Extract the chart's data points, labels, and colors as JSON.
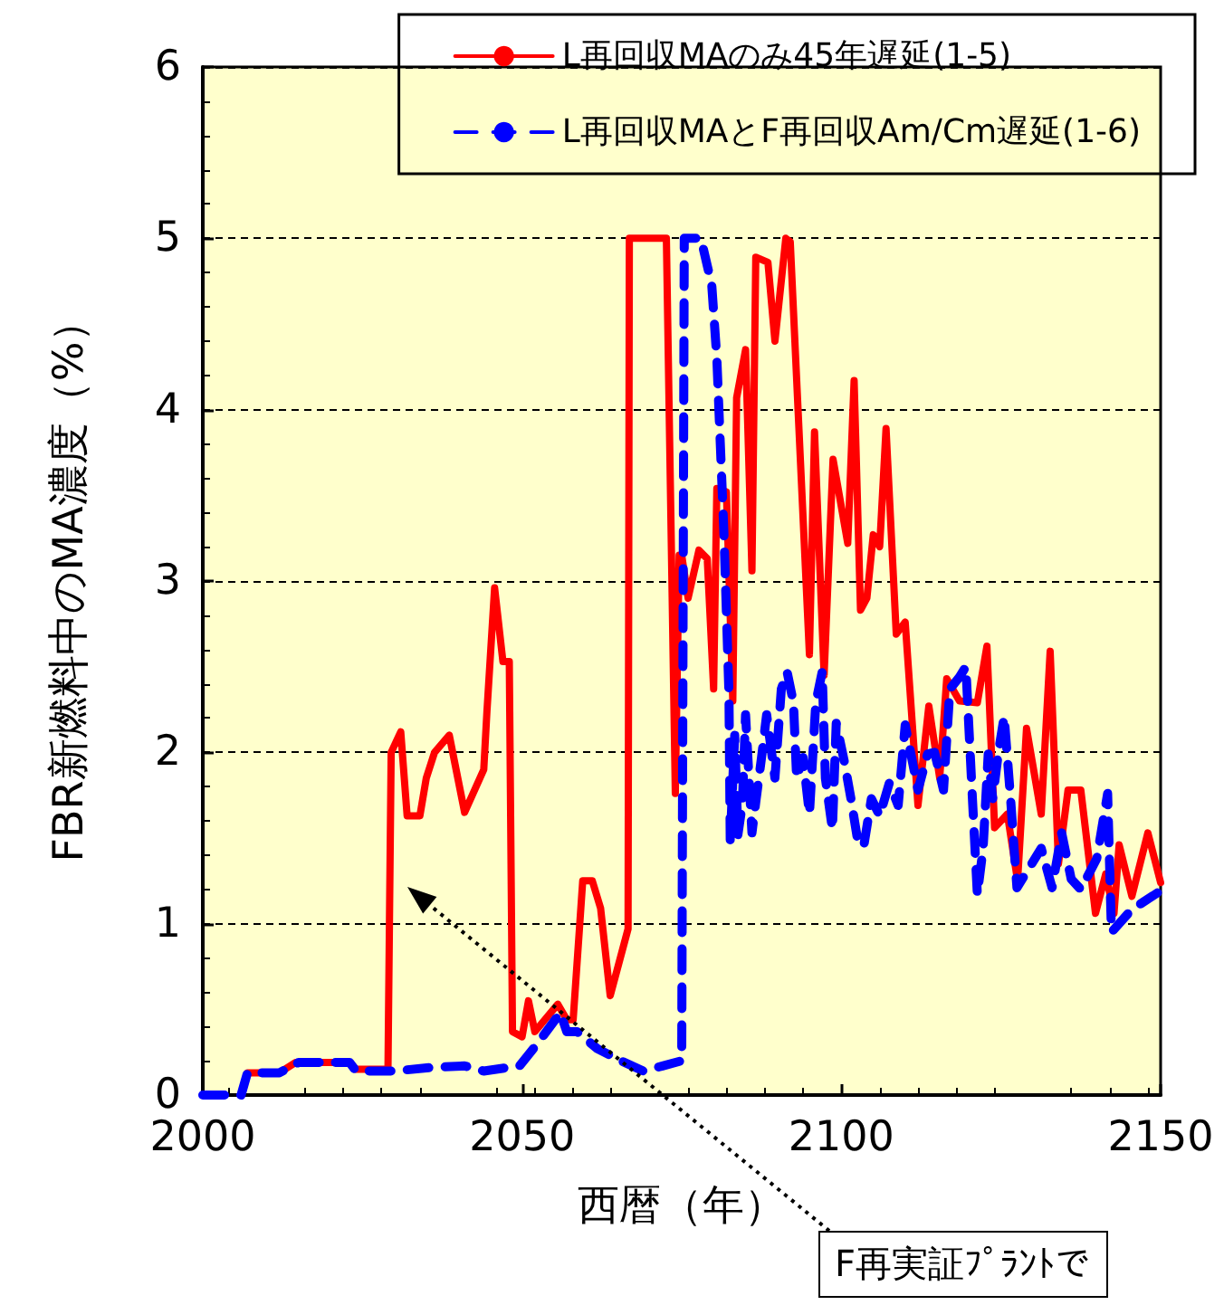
{
  "chart_data": {
    "type": "line",
    "xlabel": "西暦（年）",
    "ylabel": "FBR新燃料中のMA濃度（%）",
    "xlim": [
      2000,
      2150
    ],
    "xticks": [
      2000,
      2050,
      2100,
      2150
    ],
    "ylim": [
      0,
      6
    ],
    "yticks": [
      0,
      1,
      2,
      3,
      4,
      5,
      6
    ],
    "grid": "y",
    "legend": "top right",
    "marker": "none",
    "annotations": [
      "F再実証ﾌﾟﾗﾝﾄで"
    ],
    "series": [
      {
        "name": "L再回収MAのみ45年遅延(1-5)",
        "color": "#ff0000",
        "line_style": "solid",
        "x": [
          2006,
          2007,
          2012,
          2014.5,
          2023,
          2024,
          2029,
          2029.5,
          2031,
          2032,
          2034,
          2035,
          2036.3,
          2038.6,
          2041,
          2044,
          2044.5,
          2045.7,
          2047,
          2048,
          2048.5,
          2050,
          2051,
          2052,
          2055.6,
          2057,
          2058,
          2059.5,
          2061,
          2062.3,
          2063.8,
          2066.6,
          2066.8,
          2072.6,
          2074,
          2074.6,
          2075,
          2076,
          2077.7,
          2079,
          2080,
          2080.5,
          2082,
          2083,
          2083.6,
          2085,
          2086,
          2086.6,
          2088.5,
          2089.6,
          2091.3,
          2092,
          2095,
          2095.8,
          2097.3,
          2098.7,
          2101,
          2102,
          2103,
          2104,
          2105,
          2106,
          2107,
          2108.6,
          2110,
          2112,
          2113.7,
          2115.4,
          2116.5,
          2118.5,
          2121.3,
          2122.8,
          2124,
          2126,
          2127.6,
          2129,
          2131.3,
          2132.7,
          2134,
          2135.5,
          2137.5,
          2139.8,
          2141.4,
          2142.7,
          2143.5,
          2145.5,
          2148,
          2150
        ],
        "values": [
          0,
          0.13,
          0.13,
          0.19,
          0.19,
          0.15,
          0.15,
          2.0,
          2.12,
          1.63,
          1.63,
          1.85,
          2.0,
          2.1,
          1.65,
          1.9,
          2.24,
          2.96,
          2.53,
          2.53,
          0.37,
          0.34,
          0.55,
          0.37,
          0.53,
          0.44,
          0.44,
          1.25,
          1.25,
          1.09,
          0.58,
          0.97,
          5.0,
          5.0,
          1.76,
          3.15,
          3.15,
          2.9,
          3.18,
          3.13,
          2.37,
          3.54,
          3.52,
          2.3,
          4.07,
          4.35,
          3.06,
          4.89,
          4.86,
          4.4,
          5.0,
          4.98,
          2.57,
          3.87,
          2.45,
          3.71,
          3.22,
          4.17,
          2.83,
          2.9,
          3.27,
          3.2,
          3.89,
          2.69,
          2.76,
          1.69,
          2.27,
          1.85,
          2.43,
          2.3,
          2.29,
          2.62,
          1.56,
          1.64,
          1.25,
          2.14,
          1.64,
          2.59,
          1.35,
          1.78,
          1.78,
          1.06,
          1.29,
          1.06,
          1.46,
          1.16,
          1.53,
          1.24
        ]
      },
      {
        "name": "L再回収MAとF再回収Am/Cm遅延(1-6)",
        "color": "#0000ff",
        "line_style": "dashed",
        "x": [
          2000,
          2006,
          2007,
          2012,
          2015,
          2023,
          2024,
          2030,
          2035.5,
          2041,
          2044,
          2049.6,
          2052.4,
          2056,
          2057,
          2058.6,
          2061.8,
          2065.5,
          2069,
          2072,
          2075,
          2075.4,
          2078,
          2079.7,
          2080.5,
          2081.6,
          2082.4,
          2082.6,
          2083.3,
          2083.8,
          2084.5,
          2085,
          2086,
          2086.6,
          2087.5,
          2088.3,
          2089.6,
          2090.6,
          2091.5,
          2092.5,
          2093,
          2094,
          2095,
          2096,
          2097,
          2097.5,
          2098.6,
          2099.2,
          2100.5,
          2101.5,
          2102.5,
          2103.5,
          2104.7,
          2106,
          2107.5,
          2108.9,
          2110,
          2112,
          2113.5,
          2114.6,
          2116,
          2117,
          2118.5,
          2119.5,
          2120.5,
          2121.3,
          2122.2,
          2123,
          2123.7,
          2124.6,
          2125.5,
          2126.5,
          2127.5,
          2129,
          2131.3,
          2133,
          2134.5,
          2136,
          2137.5,
          2140,
          2141.7,
          2142.3,
          2145.4,
          2149.5
        ],
        "values": [
          0,
          0,
          0.13,
          0.13,
          0.19,
          0.19,
          0.14,
          0.14,
          0.16,
          0.17,
          0.14,
          0.17,
          0.3,
          0.48,
          0.37,
          0.37,
          0.27,
          0.2,
          0.14,
          0.17,
          0.2,
          5.0,
          5.0,
          4.73,
          4.3,
          3.29,
          2.34,
          1.48,
          2.1,
          1.52,
          1.7,
          2.22,
          1.53,
          1.71,
          1.97,
          2.22,
          1.85,
          2.37,
          2.47,
          2.29,
          1.85,
          1.97,
          1.64,
          2.29,
          2.47,
          1.85,
          1.55,
          2.17,
          1.94,
          1.73,
          1.5,
          1.45,
          1.73,
          1.63,
          1.82,
          1.69,
          2.16,
          1.78,
          1.99,
          2.0,
          1.78,
          2.37,
          2.44,
          2.5,
          1.75,
          1.17,
          1.44,
          1.99,
          1.73,
          2.0,
          2.21,
          1.73,
          1.21,
          1.3,
          1.44,
          1.21,
          1.53,
          1.26,
          1.2,
          1.38,
          1.76,
          0.95,
          1.08,
          1.18
        ]
      }
    ]
  }
}
